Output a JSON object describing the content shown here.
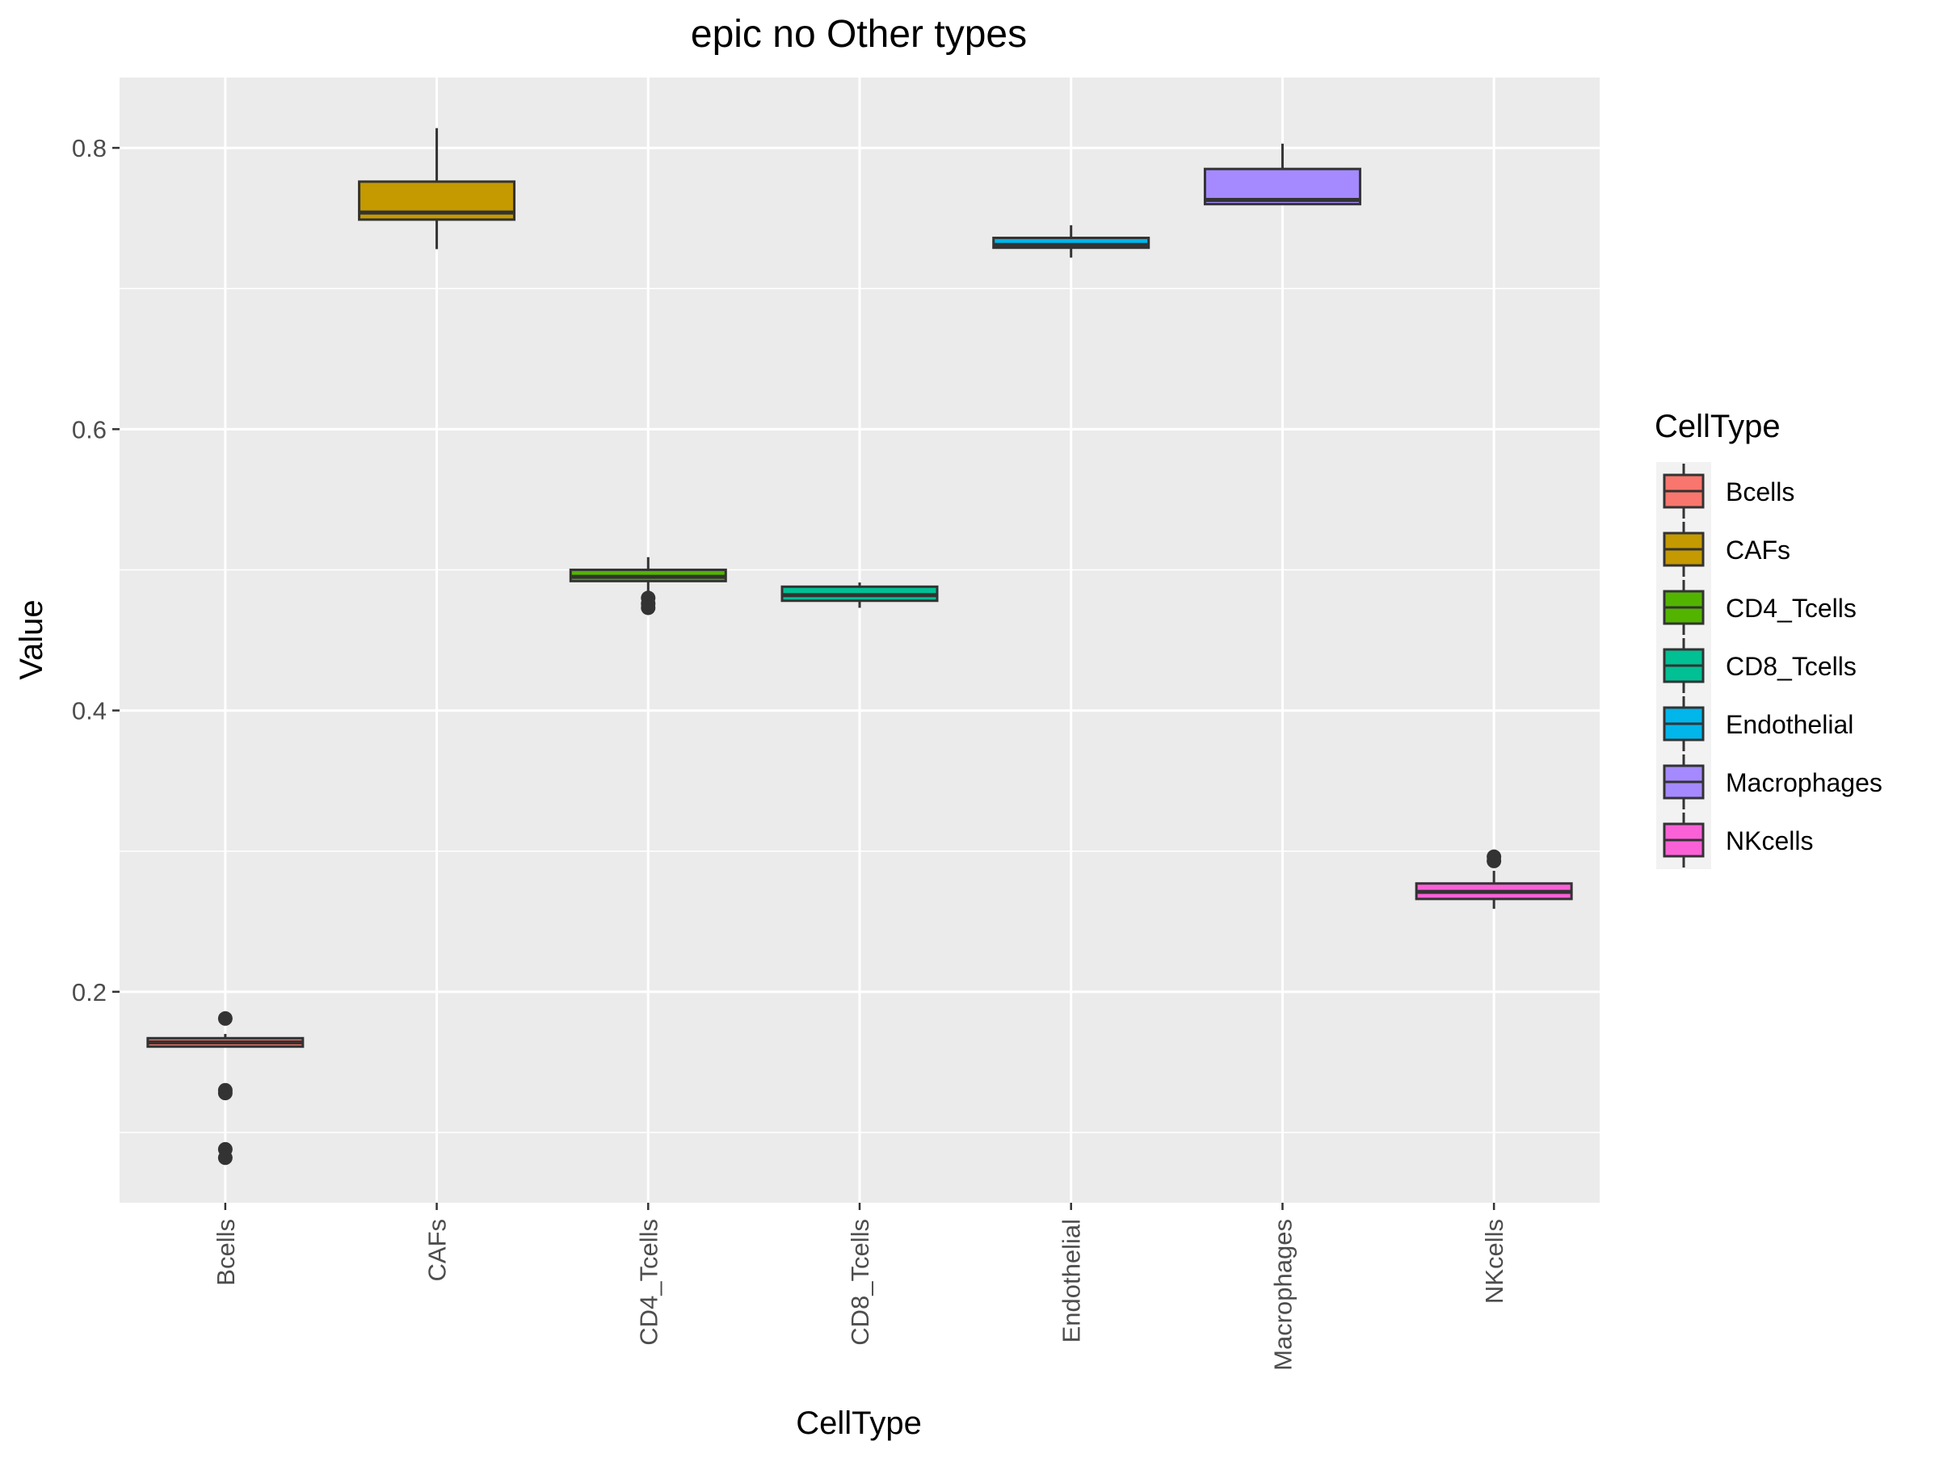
{
  "chart_data": {
    "type": "box",
    "title": "epic no Other types",
    "xlabel": "CellType",
    "ylabel": "Value",
    "ylim": [
      0.05,
      0.85
    ],
    "yticks": [
      0.2,
      0.4,
      0.6,
      0.8
    ],
    "ytick_labels": [
      "0.2",
      "0.4",
      "0.6",
      "0.8"
    ],
    "grid": true,
    "background": "#ebebeb",
    "legend": {
      "title": "CellType",
      "placement": "right"
    },
    "categories": [
      "Bcells",
      "CAFs",
      "CD4_Tcells",
      "CD8_Tcells",
      "Endothelial",
      "Macrophages",
      "NKcells"
    ],
    "series": [
      {
        "name": "Bcells",
        "color": "#F8766D",
        "whisker_low": 0.161,
        "q1": 0.161,
        "median": 0.164,
        "q3": 0.167,
        "whisker_high": 0.17,
        "outliers": [
          0.181,
          0.13,
          0.128,
          0.088,
          0.082
        ]
      },
      {
        "name": "CAFs",
        "color": "#C49A00",
        "whisker_low": 0.728,
        "q1": 0.749,
        "median": 0.754,
        "q3": 0.776,
        "whisker_high": 0.814,
        "outliers": []
      },
      {
        "name": "CD4_Tcells",
        "color": "#53B400",
        "whisker_low": 0.484,
        "q1": 0.492,
        "median": 0.495,
        "q3": 0.5,
        "whisker_high": 0.509,
        "outliers": [
          0.48,
          0.476,
          0.473
        ]
      },
      {
        "name": "CD8_Tcells",
        "color": "#00C094",
        "whisker_low": 0.473,
        "q1": 0.478,
        "median": 0.482,
        "q3": 0.488,
        "whisker_high": 0.491,
        "outliers": []
      },
      {
        "name": "Endothelial",
        "color": "#00B6EB",
        "whisker_low": 0.722,
        "q1": 0.729,
        "median": 0.731,
        "q3": 0.736,
        "whisker_high": 0.745,
        "outliers": []
      },
      {
        "name": "Macrophages",
        "color": "#A58AFF",
        "whisker_low": 0.76,
        "q1": 0.76,
        "median": 0.763,
        "q3": 0.785,
        "whisker_high": 0.803,
        "outliers": []
      },
      {
        "name": "NKcells",
        "color": "#FB61D7",
        "whisker_low": 0.259,
        "q1": 0.266,
        "median": 0.271,
        "q3": 0.277,
        "whisker_high": 0.286,
        "outliers": [
          0.296,
          0.293
        ]
      }
    ]
  }
}
